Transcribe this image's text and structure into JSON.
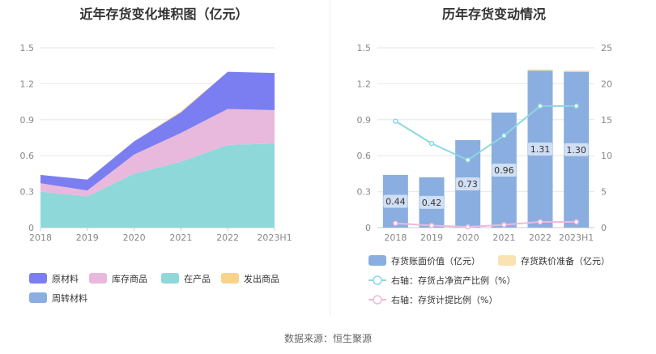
{
  "footer": "数据来源：恒生聚源",
  "chart_data": [
    {
      "type": "area",
      "title": "近年存货变化堆积图（亿元）",
      "stacked": true,
      "categories": [
        "2018",
        "2019",
        "2020",
        "2021",
        "2022",
        "2023H1"
      ],
      "ylim": [
        0,
        1.5
      ],
      "yticks": [
        "0",
        "0.3",
        "0.6",
        "0.9",
        "1.2",
        "1.5"
      ],
      "grid": true,
      "legend_position": "bottom",
      "series": [
        {
          "name": "原材料",
          "color": "#7b7ef0",
          "values": [
            0.07,
            0.09,
            0.11,
            0.17,
            0.31,
            0.31
          ]
        },
        {
          "name": "库存商品",
          "color": "#e8b9dc",
          "values": [
            0.07,
            0.05,
            0.16,
            0.24,
            0.3,
            0.28
          ]
        },
        {
          "name": "在产品",
          "color": "#8fd8da",
          "values": [
            0.3,
            0.26,
            0.45,
            0.55,
            0.69,
            0.7
          ]
        },
        {
          "name": "发出商品",
          "color": "#f9d38a",
          "values": [
            0.0,
            0.0,
            0.0,
            0.01,
            0.0,
            0.0
          ]
        },
        {
          "name": "周转材料",
          "color": "#8aaee0",
          "values": [
            0.0,
            0.0,
            0.0,
            0.0,
            0.0,
            0.0
          ]
        }
      ]
    },
    {
      "type": "bar",
      "title": "历年存货变动情况",
      "categories": [
        "2018",
        "2019",
        "2020",
        "2021",
        "2022",
        "2023H1"
      ],
      "ylim": [
        0,
        1.5
      ],
      "yticks": [
        "0",
        "0.3",
        "0.6",
        "0.9",
        "1.2",
        "1.5"
      ],
      "y2lim": [
        0,
        25
      ],
      "y2ticks": [
        "0",
        "5",
        "10",
        "15",
        "20",
        "25"
      ],
      "grid": true,
      "legend_position": "bottom",
      "series": [
        {
          "name": "存货账面价值（亿元）",
          "kind": "bar",
          "color": "#8aaee0",
          "values": [
            0.44,
            0.42,
            0.73,
            0.96,
            1.31,
            1.3
          ],
          "labels": [
            "0.44",
            "0.42",
            "0.73",
            "0.96",
            "1.31",
            "1.30"
          ]
        },
        {
          "name": "存货跌价准备（亿元）",
          "kind": "bar",
          "color": "#f9e3b0",
          "values": [
            0.0,
            0.0,
            0.0,
            0.0,
            0.01,
            0.01
          ]
        },
        {
          "name": "右轴：存货占净资产比例（%）",
          "kind": "line",
          "axis": "right",
          "color": "#8dd8e0",
          "values": [
            14.8,
            11.7,
            9.4,
            12.8,
            16.9,
            16.9
          ]
        },
        {
          "name": "右轴：存货计提比例（%）",
          "kind": "line",
          "axis": "right",
          "color": "#f0b8dc",
          "values": [
            0.6,
            0.3,
            0.1,
            0.4,
            0.8,
            0.8
          ]
        }
      ]
    }
  ]
}
